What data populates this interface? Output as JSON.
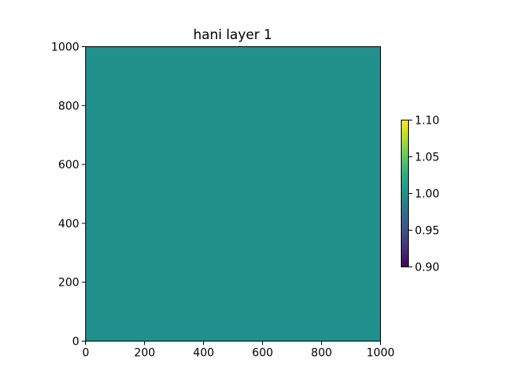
{
  "chart_data": {
    "type": "heatmap",
    "title": "hani layer 1",
    "xlabel": "",
    "ylabel": "",
    "xlim": [
      0,
      1000
    ],
    "ylim": [
      0,
      1000
    ],
    "x_ticks": [
      0,
      200,
      400,
      600,
      800,
      1000
    ],
    "y_ticks": [
      0,
      200,
      400,
      600,
      800,
      1000
    ],
    "x_tick_labels": [
      "0",
      "200",
      "400",
      "600",
      "800",
      "1000"
    ],
    "y_tick_labels": [
      "0",
      "200",
      "400",
      "600",
      "800",
      "1000"
    ],
    "grid": false,
    "field": {
      "extent": [
        0,
        1000,
        0,
        1000
      ],
      "value": 1.0,
      "uniform": true
    },
    "colorbar": {
      "colormap": "viridis",
      "range": [
        0.9,
        1.1
      ],
      "ticks": [
        0.9,
        0.95,
        1.0,
        1.05,
        1.1
      ],
      "tick_labels": [
        "0.90",
        "0.95",
        "1.00",
        "1.05",
        "1.10"
      ],
      "placement": "right"
    },
    "colors": {
      "field_fill": "#21908d"
    }
  }
}
